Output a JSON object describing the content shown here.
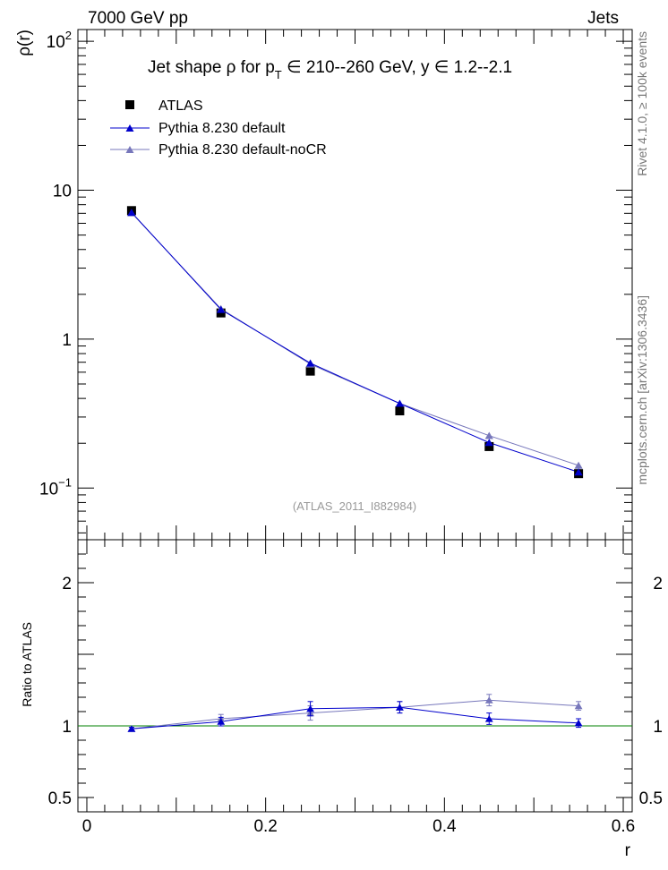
{
  "header": {
    "left": "7000 GeV pp",
    "right": "Jets"
  },
  "side_labels": {
    "rivet": "Rivet 4.1.0, ≥ 100k events",
    "mcplots": "mcplots.cern.ch [arXiv:1306.3436]"
  },
  "chart_data": {
    "type": "scatter",
    "title_parts": {
      "a": "Jet shape  ρ for p",
      "sub": "T",
      "b": " ∈ 210--260 GeV, y  ∈ 1.2--2.1"
    },
    "analysis_label": "(ATLAS_2011_I882984)",
    "x": [
      0.05,
      0.15,
      0.25,
      0.35,
      0.45,
      0.55
    ],
    "xlabel": "r",
    "xlim": [
      -0.01,
      0.61
    ],
    "x_ticks": [
      {
        "v": 0,
        "label": "0"
      },
      {
        "v": 0.2,
        "label": "0.2"
      },
      {
        "v": 0.4,
        "label": "0.4"
      },
      {
        "v": 0.6,
        "label": "0.6"
      }
    ],
    "main": {
      "ylabel": "ρ(r)",
      "yscale": "log",
      "ylim": [
        0.045,
        120
      ],
      "y_ticks": [
        {
          "v": 100,
          "base": "10",
          "exp": "2"
        },
        {
          "v": 10,
          "base": "10",
          "exp": ""
        },
        {
          "v": 1,
          "base": "1",
          "exp": ""
        },
        {
          "v": 0.1,
          "base": "10",
          "exp": "−1"
        }
      ]
    },
    "ratio": {
      "ylabel": "Ratio to ATLAS",
      "ylim": [
        0.4,
        2.3
      ],
      "y_ticks": [
        {
          "v": 0.5,
          "label": "0.5"
        },
        {
          "v": 1,
          "label": "1"
        },
        {
          "v": 2,
          "label": "2"
        }
      ],
      "reference_color": "#008000"
    },
    "series": [
      {
        "name": "ATLAS",
        "marker": "square",
        "color": "#000000",
        "values": [
          7.3,
          1.5,
          0.61,
          0.33,
          0.19,
          0.125
        ],
        "ratio": [
          1.0,
          1.0,
          1.0,
          1.0,
          1.0,
          1.0
        ]
      },
      {
        "name": "Pythia 8.230 default",
        "marker": "triangle",
        "color": "#0000cc",
        "values": [
          7.1,
          1.58,
          0.69,
          0.37,
          0.202,
          0.128
        ],
        "ratio": [
          0.98,
          1.03,
          1.12,
          1.13,
          1.05,
          1.02
        ],
        "ratio_err": [
          0.01,
          0.03,
          0.05,
          0.04,
          0.04,
          0.03
        ]
      },
      {
        "name": "Pythia 8.230 default-noCR",
        "marker": "triangle",
        "color": "#7777bb",
        "values": [
          7.05,
          1.6,
          0.68,
          0.37,
          0.225,
          0.142
        ],
        "ratio": [
          0.98,
          1.05,
          1.09,
          1.13,
          1.18,
          1.14
        ],
        "ratio_err": [
          0.01,
          0.03,
          0.05,
          0.04,
          0.04,
          0.03
        ]
      }
    ]
  }
}
